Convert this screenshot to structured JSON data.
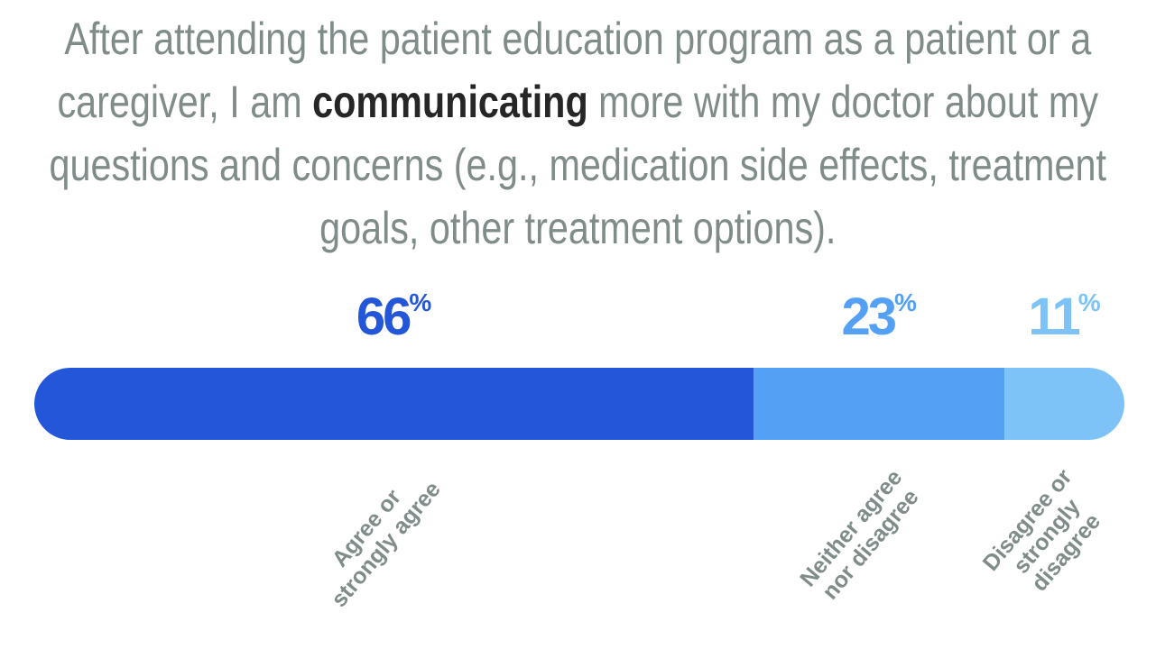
{
  "chart_data": {
    "type": "stacked_bar",
    "title": [
      {
        "text": "After attending the patient education program as a patient or a caregiver, I am ",
        "bold": false
      },
      {
        "text": "communicating",
        "bold": true
      },
      {
        "text": " more with my doctor about my questions and concerns (e.g., medication side effects, treatment goals, other treatment options).",
        "bold": false
      }
    ],
    "categories": [
      "Agree or strongly agree",
      "Neither agree nor disagree",
      "Disagree or strongly disagree"
    ],
    "values": [
      66,
      23,
      11
    ],
    "value_labels": [
      "66%",
      "23%",
      "11%"
    ],
    "colors": [
      "#2356d8",
      "#54a0f5",
      "#7dc3f7"
    ]
  }
}
